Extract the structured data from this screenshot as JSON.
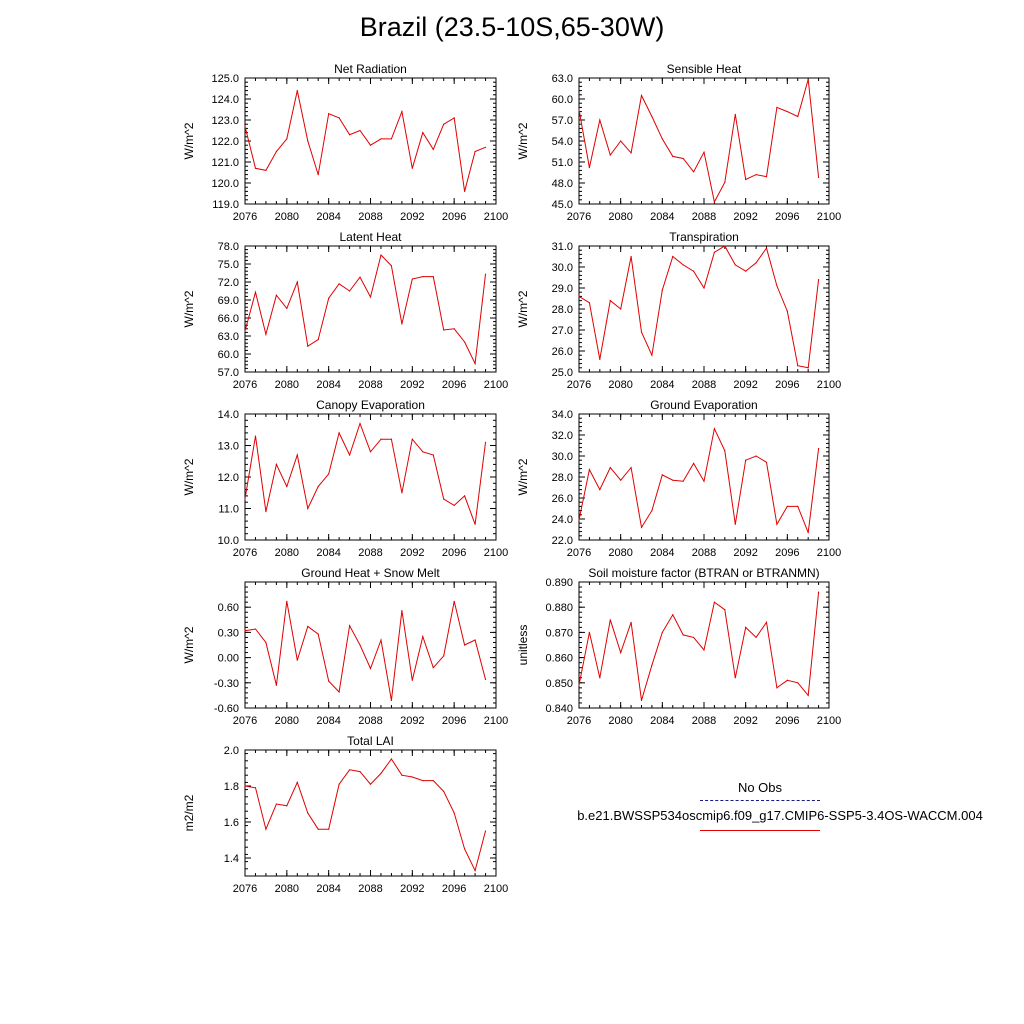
{
  "figure": {
    "title": "Brazil (23.5-10S,65-30W)"
  },
  "legend": {
    "obs_label": "No Obs",
    "case_label": "b.e21.BWSSP534oscmip6.f09_g17.CMIP6-SSP5-3.4OS-WACCM.004",
    "obs_color": "#1a1a8c",
    "case_color": "#e00000"
  },
  "chart_data": [
    {
      "type": "line",
      "title": "Net Radiation",
      "ylabel": "W/m^2",
      "ylim": [
        119.0,
        125.0
      ],
      "yticks": [
        "119.0",
        "120.0",
        "121.0",
        "122.0",
        "123.0",
        "124.0",
        "125.0"
      ],
      "xlim": [
        2076,
        2100
      ],
      "xticks": [
        "2076",
        "2080",
        "2084",
        "2088",
        "2092",
        "2096",
        "2100"
      ],
      "x": [
        2076,
        2077,
        2078,
        2079,
        2080,
        2081,
        2082,
        2083,
        2084,
        2085,
        2086,
        2087,
        2088,
        2089,
        2090,
        2091,
        2092,
        2093,
        2094,
        2095,
        2096,
        2097,
        2098,
        2099
      ],
      "series": [
        {
          "values": [
            122.7,
            120.7,
            120.6,
            121.5,
            122.1,
            124.4,
            122.0,
            120.4,
            123.3,
            123.1,
            122.3,
            122.5,
            121.8,
            122.1,
            122.1,
            123.4,
            120.7,
            122.4,
            121.6,
            122.8,
            123.1,
            119.6,
            121.5,
            121.7
          ]
        }
      ]
    },
    {
      "type": "line",
      "title": "Sensible Heat",
      "ylabel": "W/m^2",
      "ylim": [
        45.0,
        63.0
      ],
      "yticks": [
        "45.0",
        "48.0",
        "51.0",
        "54.0",
        "57.0",
        "60.0",
        "63.0"
      ],
      "xlim": [
        2076,
        2100
      ],
      "xticks": [
        "2076",
        "2080",
        "2084",
        "2088",
        "2092",
        "2096",
        "2100"
      ],
      "x": [
        2076,
        2077,
        2078,
        2079,
        2080,
        2081,
        2082,
        2083,
        2084,
        2085,
        2086,
        2087,
        2088,
        2089,
        2090,
        2091,
        2092,
        2093,
        2094,
        2095,
        2096,
        2097,
        2098,
        2099
      ],
      "series": [
        {
          "values": [
            58.5,
            50.2,
            57.0,
            52.0,
            54.0,
            52.3,
            60.5,
            57.5,
            54.3,
            51.8,
            51.5,
            49.6,
            52.4,
            45.3,
            48.1,
            57.8,
            48.5,
            49.2,
            48.9,
            58.8,
            58.2,
            57.5,
            62.8,
            48.8
          ]
        }
      ]
    },
    {
      "type": "line",
      "title": "Latent Heat",
      "ylabel": "W/m^2",
      "ylim": [
        57.0,
        78.0
      ],
      "yticks": [
        "57.0",
        "60.0",
        "63.0",
        "66.0",
        "69.0",
        "72.0",
        "75.0",
        "78.0"
      ],
      "xlim": [
        2076,
        2100
      ],
      "xticks": [
        "2076",
        "2080",
        "2084",
        "2088",
        "2092",
        "2096",
        "2100"
      ],
      "x": [
        2076,
        2077,
        2078,
        2079,
        2080,
        2081,
        2082,
        2083,
        2084,
        2085,
        2086,
        2087,
        2088,
        2089,
        2090,
        2091,
        2092,
        2093,
        2094,
        2095,
        2096,
        2097,
        2098,
        2099
      ],
      "series": [
        {
          "values": [
            63.8,
            70.3,
            63.3,
            69.8,
            67.6,
            72.0,
            61.3,
            62.4,
            69.3,
            71.7,
            70.5,
            72.8,
            69.5,
            76.5,
            74.7,
            65.0,
            72.5,
            72.9,
            72.9,
            64.0,
            64.2,
            62.0,
            58.4,
            73.3
          ]
        }
      ]
    },
    {
      "type": "line",
      "title": "Transpiration",
      "ylabel": "W/m^2",
      "ylim": [
        25.0,
        31.0
      ],
      "yticks": [
        "25.0",
        "26.0",
        "27.0",
        "28.0",
        "29.0",
        "30.0",
        "31.0"
      ],
      "xlim": [
        2076,
        2100
      ],
      "xticks": [
        "2076",
        "2080",
        "2084",
        "2088",
        "2092",
        "2096",
        "2100"
      ],
      "x": [
        2076,
        2077,
        2078,
        2079,
        2080,
        2081,
        2082,
        2083,
        2084,
        2085,
        2086,
        2087,
        2088,
        2089,
        2090,
        2091,
        2092,
        2093,
        2094,
        2095,
        2096,
        2097,
        2098,
        2099
      ],
      "series": [
        {
          "values": [
            28.6,
            28.3,
            25.6,
            28.4,
            28.0,
            30.5,
            26.9,
            25.8,
            28.9,
            30.5,
            30.1,
            29.8,
            29.0,
            30.7,
            31.0,
            30.1,
            29.8,
            30.2,
            30.9,
            29.1,
            27.9,
            25.3,
            25.2,
            29.4
          ]
        }
      ]
    },
    {
      "type": "line",
      "title": "Canopy Evaporation",
      "ylabel": "W/m^2",
      "ylim": [
        10.0,
        14.0
      ],
      "yticks": [
        "10.0",
        "11.0",
        "12.0",
        "13.0",
        "14.0"
      ],
      "xlim": [
        2076,
        2100
      ],
      "xticks": [
        "2076",
        "2080",
        "2084",
        "2088",
        "2092",
        "2096",
        "2100"
      ],
      "x": [
        2076,
        2077,
        2078,
        2079,
        2080,
        2081,
        2082,
        2083,
        2084,
        2085,
        2086,
        2087,
        2088,
        2089,
        2090,
        2091,
        2092,
        2093,
        2094,
        2095,
        2096,
        2097,
        2098,
        2099
      ],
      "series": [
        {
          "values": [
            11.3,
            13.3,
            10.9,
            12.4,
            11.7,
            12.7,
            11.0,
            11.7,
            12.1,
            13.4,
            12.7,
            13.7,
            12.8,
            13.2,
            13.2,
            11.5,
            13.2,
            12.8,
            12.7,
            11.3,
            11.1,
            11.4,
            10.5,
            13.1
          ]
        }
      ]
    },
    {
      "type": "line",
      "title": "Ground Evaporation",
      "ylabel": "W/m^2",
      "ylim": [
        22.0,
        34.0
      ],
      "yticks": [
        "22.0",
        "24.0",
        "26.0",
        "28.0",
        "30.0",
        "32.0",
        "34.0"
      ],
      "xlim": [
        2076,
        2100
      ],
      "xticks": [
        "2076",
        "2080",
        "2084",
        "2088",
        "2092",
        "2096",
        "2100"
      ],
      "x": [
        2076,
        2077,
        2078,
        2079,
        2080,
        2081,
        2082,
        2083,
        2084,
        2085,
        2086,
        2087,
        2088,
        2089,
        2090,
        2091,
        2092,
        2093,
        2094,
        2095,
        2096,
        2097,
        2098,
        2099
      ],
      "series": [
        {
          "values": [
            23.9,
            28.7,
            26.8,
            28.9,
            27.7,
            28.9,
            23.2,
            24.8,
            28.2,
            27.7,
            27.6,
            29.3,
            27.6,
            32.6,
            30.5,
            23.5,
            29.6,
            30.0,
            29.4,
            23.5,
            25.2,
            25.2,
            22.7,
            30.7
          ]
        }
      ]
    },
    {
      "type": "line",
      "title": "Ground Heat + Snow Melt",
      "ylabel": "W/m^2",
      "ylim": [
        -0.6,
        0.9
      ],
      "yticks": [
        "-0.60",
        "-0.30",
        "0.00",
        "0.30",
        "0.60"
      ],
      "xlim": [
        2076,
        2100
      ],
      "xticks": [
        "2076",
        "2080",
        "2084",
        "2088",
        "2092",
        "2096",
        "2100"
      ],
      "x": [
        2076,
        2077,
        2078,
        2079,
        2080,
        2081,
        2082,
        2083,
        2084,
        2085,
        2086,
        2087,
        2088,
        2089,
        2090,
        2091,
        2092,
        2093,
        2094,
        2095,
        2096,
        2097,
        2098,
        2099
      ],
      "series": [
        {
          "values": [
            0.32,
            0.34,
            0.18,
            -0.33,
            0.67,
            -0.03,
            0.37,
            0.28,
            -0.28,
            -0.41,
            0.38,
            0.15,
            -0.13,
            0.21,
            -0.51,
            0.56,
            -0.27,
            0.25,
            -0.12,
            0.02,
            0.67,
            0.15,
            0.21,
            -0.26
          ]
        }
      ]
    },
    {
      "type": "line",
      "title": "Soil moisture factor (BTRAN or BTRANMN)",
      "ylabel": "unitless",
      "ylim": [
        0.84,
        0.89
      ],
      "yticks": [
        "0.840",
        "0.850",
        "0.860",
        "0.870",
        "0.880",
        "0.890"
      ],
      "xlim": [
        2076,
        2100
      ],
      "xticks": [
        "2076",
        "2080",
        "2084",
        "2088",
        "2092",
        "2096",
        "2100"
      ],
      "x": [
        2076,
        2077,
        2078,
        2079,
        2080,
        2081,
        2082,
        2083,
        2084,
        2085,
        2086,
        2087,
        2088,
        2089,
        2090,
        2091,
        2092,
        2093,
        2094,
        2095,
        2096,
        2097,
        2098,
        2099
      ],
      "series": [
        {
          "values": [
            0.849,
            0.87,
            0.852,
            0.875,
            0.862,
            0.874,
            0.843,
            0.857,
            0.87,
            0.877,
            0.869,
            0.868,
            0.863,
            0.882,
            0.879,
            0.852,
            0.872,
            0.868,
            0.874,
            0.848,
            0.851,
            0.85,
            0.845,
            0.886
          ]
        }
      ]
    },
    {
      "type": "line",
      "title": "Total LAI",
      "ylabel": "m2/m2",
      "ylim": [
        1.3,
        2.0
      ],
      "yticks": [
        "1.4",
        "1.6",
        "1.8",
        "2.0"
      ],
      "xlim": [
        2076,
        2100
      ],
      "xticks": [
        "2076",
        "2080",
        "2084",
        "2088",
        "2092",
        "2096",
        "2100"
      ],
      "x": [
        2076,
        2077,
        2078,
        2079,
        2080,
        2081,
        2082,
        2083,
        2084,
        2085,
        2086,
        2087,
        2088,
        2089,
        2090,
        2091,
        2092,
        2093,
        2094,
        2095,
        2096,
        2097,
        2098,
        2099
      ],
      "series": [
        {
          "values": [
            1.8,
            1.79,
            1.56,
            1.7,
            1.69,
            1.82,
            1.65,
            1.56,
            1.56,
            1.81,
            1.89,
            1.88,
            1.81,
            1.87,
            1.95,
            1.86,
            1.85,
            1.83,
            1.83,
            1.77,
            1.65,
            1.45,
            1.33,
            1.55
          ]
        }
      ]
    }
  ]
}
